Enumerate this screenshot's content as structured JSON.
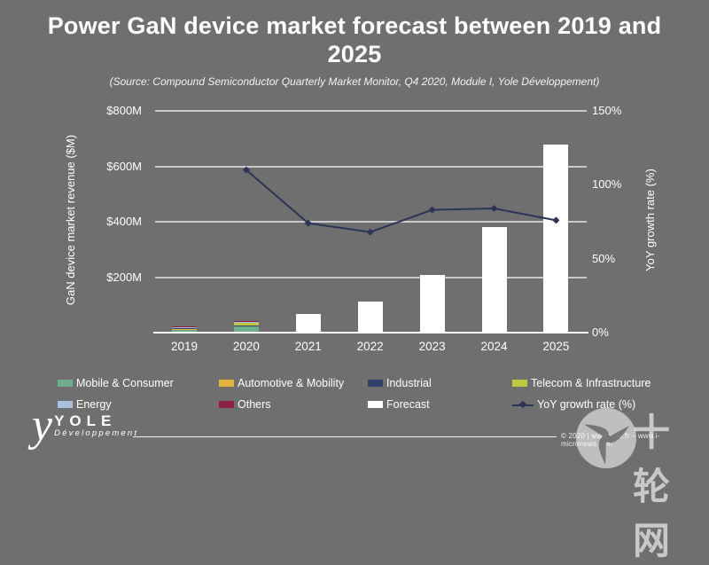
{
  "header": {
    "title": "Power GaN device market forecast between 2019 and 2025",
    "source": "(Source: Compound Semiconductor Quarterly Market Monitor, Q4 2020, Module I, Yole Développement)"
  },
  "chart_data": {
    "type": "bar+line combo (stacked bars, white forecast bars, YoY line)",
    "categories": [
      "2019",
      "2020",
      "2021",
      "2022",
      "2023",
      "2024",
      "2025"
    ],
    "bar_unit": "$M",
    "bar_series": [
      {
        "name": "Mobile & Consumer",
        "color": "#6FAE8C",
        "values": [
          12,
          22,
          0,
          0,
          0,
          0,
          0
        ]
      },
      {
        "name": "Automotive & Mobility",
        "color": "#E2B33C",
        "values": [
          2,
          3,
          0,
          0,
          0,
          0,
          0
        ]
      },
      {
        "name": "Industrial",
        "color": "#32406B",
        "values": [
          1,
          1.5,
          0,
          0,
          0,
          0,
          0
        ]
      },
      {
        "name": "Telecom & Infrastructure",
        "color": "#BFC840",
        "values": [
          5,
          12,
          0,
          0,
          0,
          0,
          0
        ]
      },
      {
        "name": "Energy",
        "color": "#A9C0DE",
        "values": [
          0.5,
          1,
          0,
          0,
          0,
          0,
          0
        ]
      },
      {
        "name": "Others",
        "color": "#8E1F3C",
        "values": [
          1.5,
          3,
          0,
          0,
          0,
          0,
          0
        ]
      },
      {
        "name": "Forecast",
        "color": "#FFFFFF",
        "values": [
          0,
          0,
          68,
          112,
          208,
          382,
          680
        ]
      }
    ],
    "line_series": {
      "name": "YoY growth rate (%)",
      "color": "#2B3655",
      "values": [
        null,
        110,
        74,
        68,
        83,
        84,
        76
      ]
    },
    "left_axis": {
      "label": "GaN device market revenue ($M)",
      "min": 0,
      "max": 800,
      "ticks": [
        {
          "label": "$200M",
          "value": 200
        },
        {
          "label": "$400M",
          "value": 400
        },
        {
          "label": "$600M",
          "value": 600
        },
        {
          "label": "$800M",
          "value": 800
        }
      ]
    },
    "right_axis": {
      "label": "YoY growth rate (%)",
      "min": 0,
      "max": 150,
      "ticks": [
        {
          "label": "0%",
          "value": 0
        },
        {
          "label": "50%",
          "value": 50
        },
        {
          "label": "100%",
          "value": 100
        },
        {
          "label": "150%",
          "value": 150
        }
      ]
    },
    "grid": "horizontal gridlines every $200M, white baseline at 0",
    "legend_position": "bottom, 4 columns × 2 rows"
  },
  "legend": {
    "items": [
      {
        "label": "Mobile & Consumer",
        "color": "#6FAE8C",
        "type": "swatch"
      },
      {
        "label": "Automotive & Mobility",
        "color": "#E2B33C",
        "type": "swatch"
      },
      {
        "label": "Industrial",
        "color": "#32406B",
        "type": "swatch"
      },
      {
        "label": "Telecom & Infrastructure",
        "color": "#BFC840",
        "type": "swatch"
      },
      {
        "label": "Energy",
        "color": "#A9C0DE",
        "type": "swatch"
      },
      {
        "label": "Others",
        "color": "#8E1F3C",
        "type": "swatch"
      },
      {
        "label": "Forecast",
        "color": "#FFFFFF",
        "type": "swatch"
      },
      {
        "label": "YoY growth rate (%)",
        "color": "#2B3655",
        "type": "line"
      }
    ]
  },
  "footer": {
    "logo": {
      "mark": "y",
      "name": "YOLE",
      "tagline": "Développement"
    },
    "copyright": "© 2020 | www.yole.fr – www.i-micronews.com",
    "watermark": "十轮网"
  },
  "colors": {
    "background": "#6F6F6F",
    "gridline": "#D9D9D9",
    "text": "#FFFFFF",
    "yoy_line": "#2B3655"
  }
}
